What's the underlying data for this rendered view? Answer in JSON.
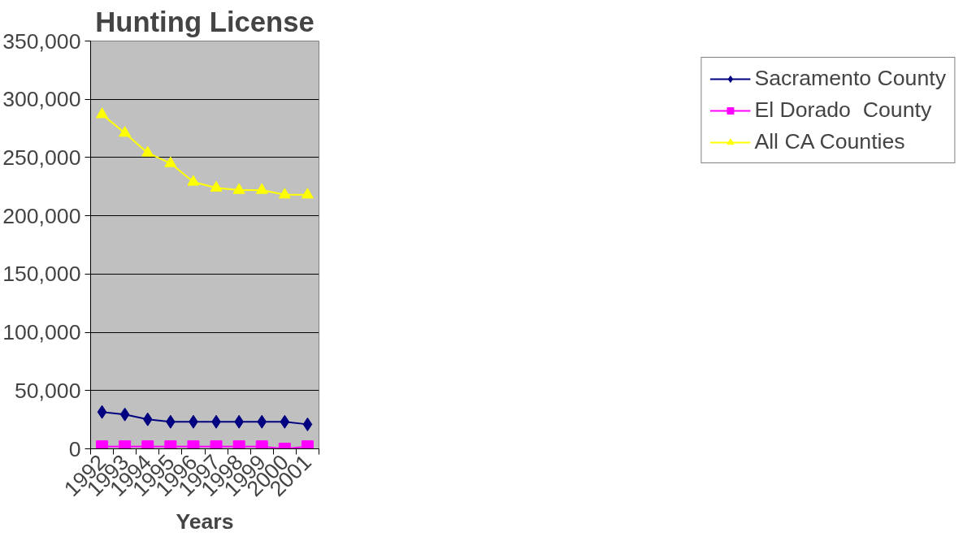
{
  "chart_data": {
    "type": "line",
    "title": "Hunting License",
    "xlabel": "Years",
    "categories": [
      "1992",
      "1993",
      "1994",
      "1995",
      "1996",
      "1997",
      "1998",
      "1999",
      "2000",
      "2001"
    ],
    "series": [
      {
        "name": "Sacramento County",
        "color": "#000080",
        "marker": "diamond",
        "values": [
          31600,
          29500,
          25300,
          23200,
          23200,
          23200,
          23200,
          23200,
          23200,
          21000
        ]
      },
      {
        "name": "El Dorado  County",
        "color": "#ff00ff",
        "marker": "square",
        "values": [
          2000,
          2000,
          2000,
          2000,
          2000,
          2000,
          2000,
          2000,
          0,
          2000
        ]
      },
      {
        "name": "All CA Counties",
        "color": "#ffff00",
        "marker": "triangle",
        "values": [
          287000,
          271000,
          254000,
          245000,
          229000,
          224000,
          222000,
          222000,
          218000,
          218000
        ]
      }
    ],
    "ylim": [
      0,
      350000
    ],
    "yticks": [
      {
        "value": 0,
        "label": "0"
      },
      {
        "value": 50000,
        "label": "50,000"
      },
      {
        "value": 100000,
        "label": "100,000"
      },
      {
        "value": 150000,
        "label": "150,000"
      },
      {
        "value": 200000,
        "label": "200,000"
      },
      {
        "value": 250000,
        "label": "250,000"
      },
      {
        "value": 300000,
        "label": "300,000"
      },
      {
        "value": 350000,
        "label": "350,000"
      }
    ],
    "grid": "y",
    "legend": "right",
    "line_style": "solid"
  }
}
